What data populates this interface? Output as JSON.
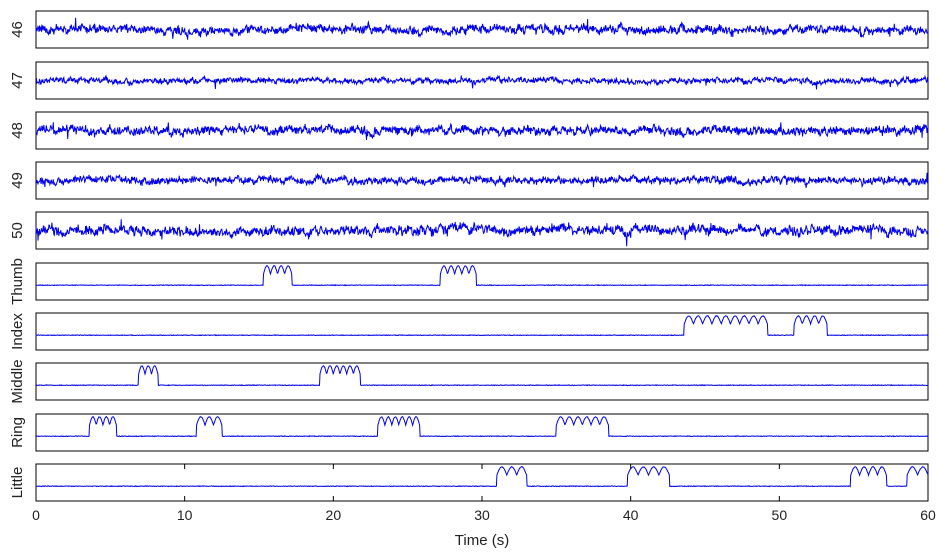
{
  "chart_data": {
    "type": "line",
    "title": "",
    "xlabel": "Time (s)",
    "xlim": [
      0,
      60
    ],
    "x_ticks": [
      0,
      10,
      20,
      30,
      40,
      50,
      60
    ],
    "x_tick_labels": [
      "0",
      "10",
      "20",
      "30",
      "40",
      "50",
      "60"
    ],
    "grid": false,
    "line_color": "#0000ee",
    "panels": [
      {
        "label": "46",
        "kind": "noise",
        "amplitude": 0.55,
        "seed": 46
      },
      {
        "label": "47",
        "kind": "noise",
        "amplitude": 0.35,
        "seed": 47
      },
      {
        "label": "48",
        "kind": "noise",
        "amplitude": 0.55,
        "seed": 48
      },
      {
        "label": "49",
        "kind": "noise",
        "amplitude": 0.45,
        "seed": 49
      },
      {
        "label": "50",
        "kind": "noise",
        "amplitude": 0.6,
        "seed": 50
      },
      {
        "label": "Thumb",
        "kind": "bursts",
        "bursts": [
          [
            15.3,
            17.2,
            4
          ],
          [
            27.2,
            29.6,
            5
          ]
        ]
      },
      {
        "label": "Index",
        "kind": "bursts",
        "bursts": [
          [
            43.6,
            49.2,
            9
          ],
          [
            51.0,
            53.2,
            4
          ]
        ]
      },
      {
        "label": "Middle",
        "kind": "bursts",
        "bursts": [
          [
            6.9,
            8.2,
            3
          ],
          [
            19.1,
            21.8,
            6
          ]
        ]
      },
      {
        "label": "Ring",
        "kind": "bursts",
        "bursts": [
          [
            3.6,
            5.4,
            4
          ],
          [
            10.8,
            12.5,
            3
          ],
          [
            23.0,
            25.8,
            6
          ],
          [
            35.0,
            38.5,
            6
          ]
        ]
      },
      {
        "label": "Little",
        "kind": "bursts",
        "bursts": [
          [
            31.0,
            33.0,
            3
          ],
          [
            39.8,
            42.6,
            4
          ],
          [
            54.8,
            57.2,
            4
          ],
          [
            58.6,
            60.0,
            2
          ]
        ]
      }
    ]
  }
}
